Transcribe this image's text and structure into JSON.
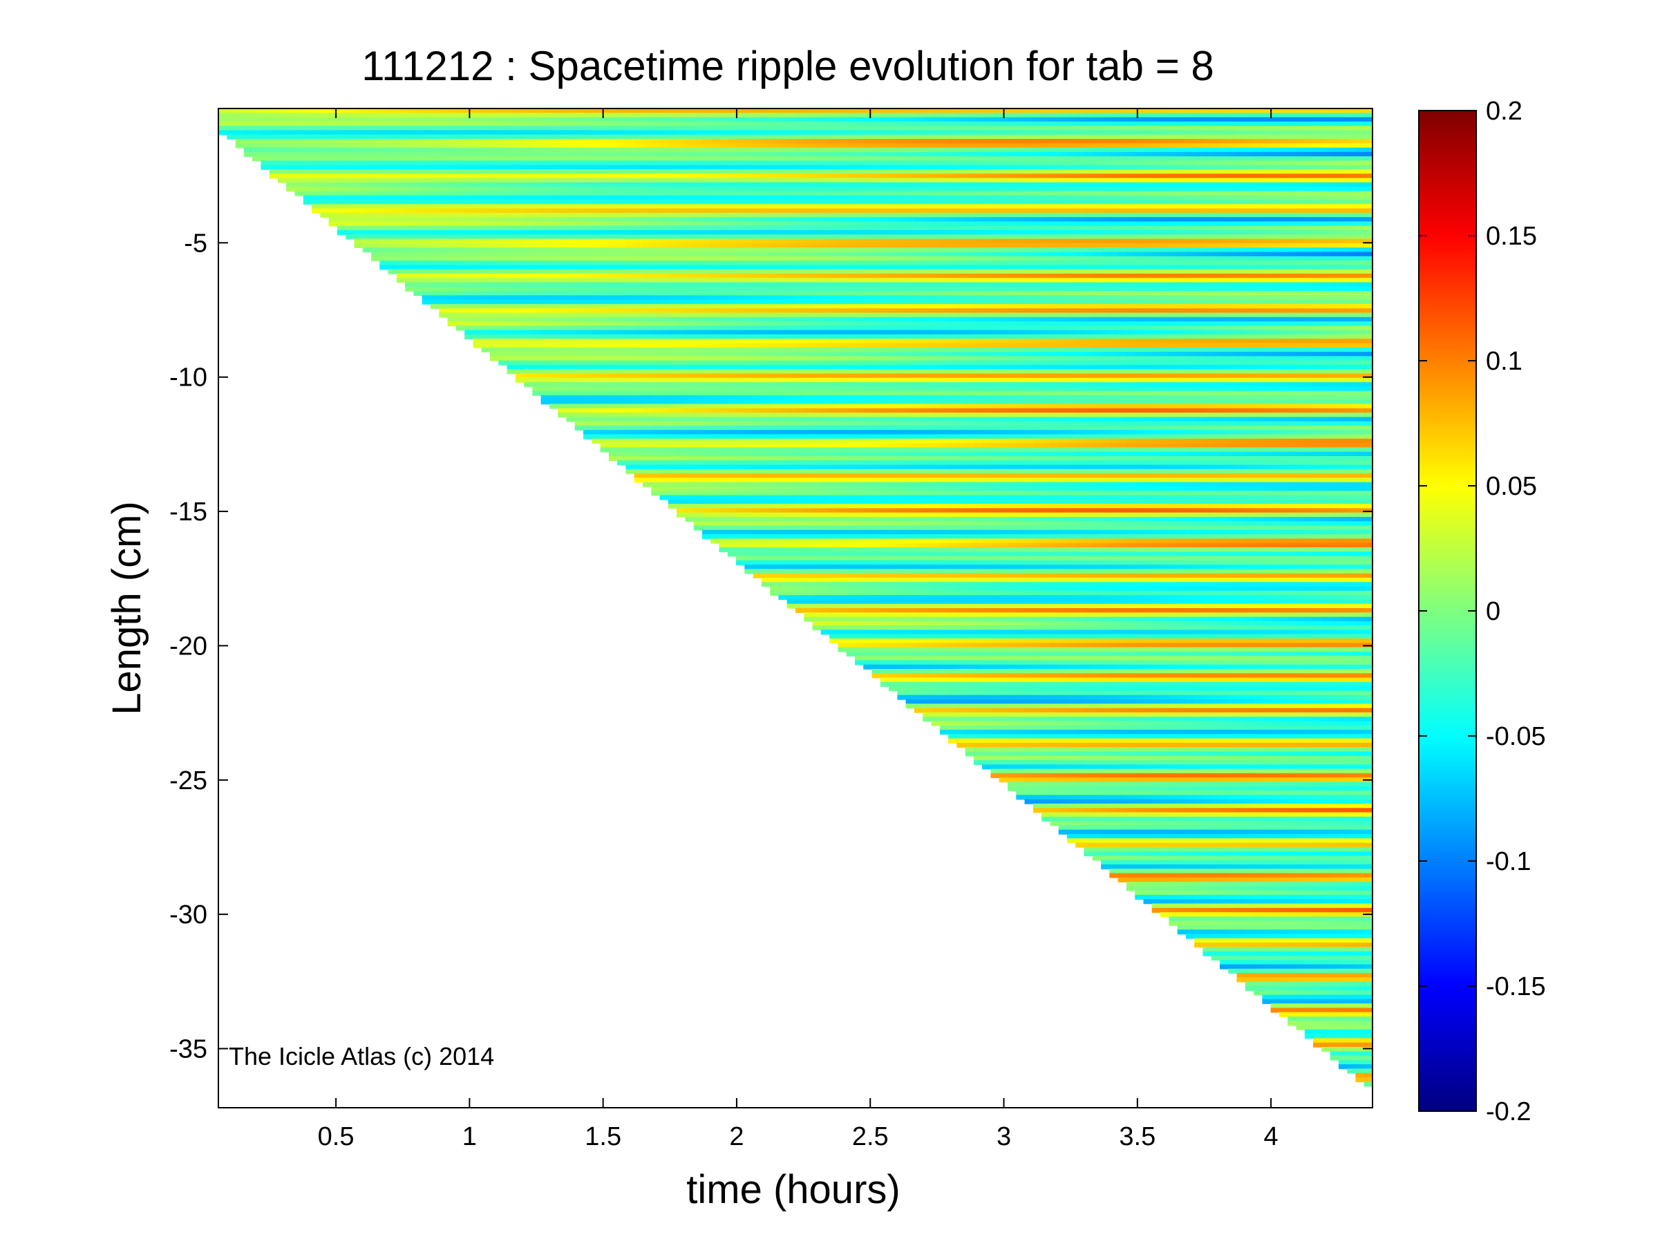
{
  "chart_data": {
    "type": "heatmap",
    "title": "111212 : Spacetime ripple evolution for tab = 8",
    "xlabel": "time (hours)",
    "ylabel": "Length (cm)",
    "xlim": [
      0.06,
      4.38
    ],
    "ylim": [
      -37.2,
      0.0
    ],
    "x_ticks": [
      0.5,
      1,
      1.5,
      2,
      2.5,
      3,
      3.5,
      4
    ],
    "x_tick_labels": [
      "0.5",
      "1",
      "1.5",
      "2",
      "2.5",
      "3",
      "3.5",
      "4"
    ],
    "y_ticks": [
      -5,
      -10,
      -15,
      -20,
      -25,
      -30,
      -35
    ],
    "y_tick_labels": [
      "-5",
      "-10",
      "-15",
      "-20",
      "-25",
      "-30",
      "-35"
    ],
    "colorbar": {
      "colormap": "jet",
      "clim": [
        -0.2,
        0.2
      ],
      "ticks": [
        0.2,
        0.15,
        0.1,
        0.05,
        0,
        -0.05,
        -0.1,
        -0.15,
        -0.2
      ],
      "tick_labels": [
        "0.2",
        "0.15",
        "0.1",
        "0.05",
        "0",
        "-0.05",
        "-0.1",
        "-0.15",
        "-0.2"
      ]
    },
    "data_boundary": {
      "description_note": "",
      "start": [
        0.06,
        -0.8
      ],
      "end": [
        4.38,
        -36.6
      ]
    },
    "grid": false,
    "annotation": "The Icicle Atlas (c) 2014"
  }
}
